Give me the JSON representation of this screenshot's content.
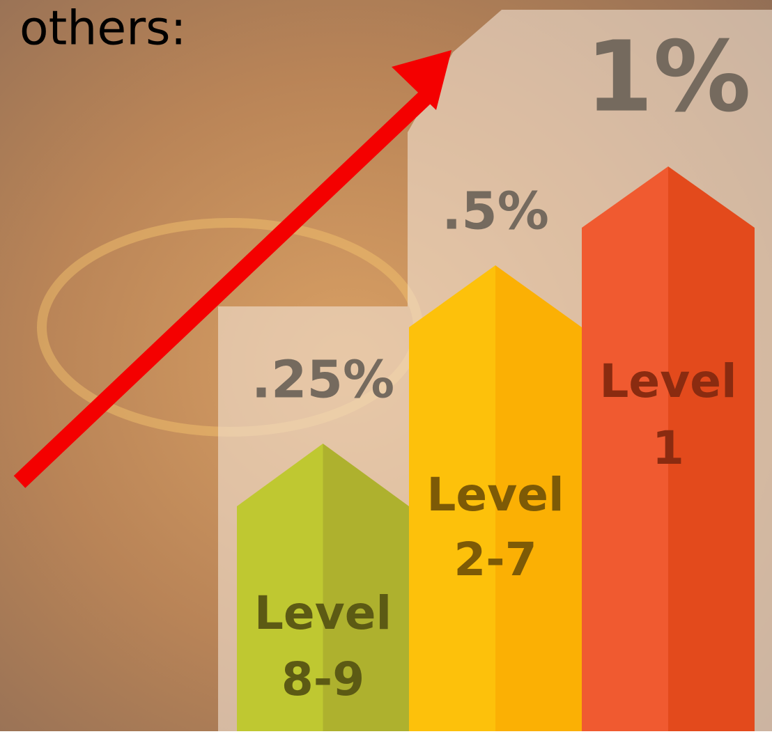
{
  "intro": "others:",
  "columns": [
    {
      "percent": ".25%",
      "label_lines": [
        "Level",
        "8-9"
      ]
    },
    {
      "percent": ".5%",
      "label_lines": [
        "Level",
        "2-7"
      ]
    },
    {
      "percent": "1%",
      "label_lines": [
        "Level",
        "1"
      ]
    }
  ]
}
